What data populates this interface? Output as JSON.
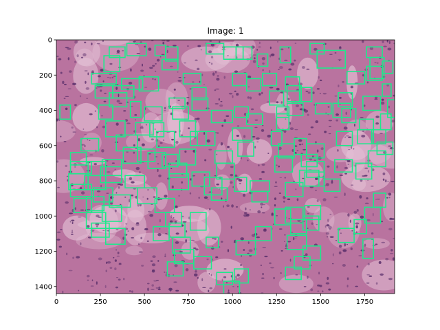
{
  "figure": {
    "title": "Image: 1"
  },
  "image": {
    "description_name": "histology-tissue-patch",
    "base_color": "#b9739f",
    "dark_color": "#5a2f6b",
    "light_color": "#e4c2d6",
    "box_color": "#1de98b"
  },
  "chart_data": {
    "type": "scatter",
    "xlim": [
      0,
      1920
    ],
    "ylim": [
      1440,
      0
    ],
    "x_ticks": [
      0,
      250,
      500,
      750,
      1000,
      1250,
      1500,
      1750
    ],
    "y_ticks": [
      0,
      200,
      400,
      600,
      800,
      1000,
      1200,
      1400
    ],
    "x_tick_labels": [
      "0",
      "250",
      "500",
      "750",
      "1000",
      "1250",
      "1500",
      "1750"
    ],
    "y_tick_labels": [
      "0",
      "200",
      "400",
      "600",
      "800",
      "1000",
      "1200",
      "1400"
    ],
    "grid": false,
    "boxes": [
      [
        300,
        40,
        90,
        60
      ],
      [
        400,
        20,
        110,
        70
      ],
      [
        560,
        30,
        60,
        60
      ],
      [
        620,
        40,
        70,
        80
      ],
      [
        850,
        20,
        100,
        60
      ],
      [
        950,
        40,
        110,
        70
      ],
      [
        1020,
        40,
        90,
        70
      ],
      [
        1140,
        80,
        60,
        70
      ],
      [
        1270,
        40,
        60,
        90
      ],
      [
        1440,
        20,
        80,
        60
      ],
      [
        1480,
        60,
        160,
        100
      ],
      [
        1760,
        40,
        90,
        60
      ],
      [
        1780,
        100,
        80,
        120
      ],
      [
        1850,
        120,
        60,
        70
      ],
      [
        270,
        90,
        90,
        90
      ],
      [
        200,
        190,
        140,
        60
      ],
      [
        220,
        260,
        100,
        70
      ],
      [
        320,
        260,
        120,
        70
      ],
      [
        370,
        220,
        120,
        60
      ],
      [
        470,
        210,
        110,
        80
      ],
      [
        600,
        110,
        90,
        60
      ],
      [
        720,
        190,
        100,
        60
      ],
      [
        770,
        270,
        80,
        70
      ],
      [
        1000,
        190,
        80,
        70
      ],
      [
        1080,
        220,
        80,
        70
      ],
      [
        1170,
        190,
        80,
        70
      ],
      [
        1300,
        210,
        80,
        80
      ],
      [
        1310,
        260,
        80,
        90
      ],
      [
        1380,
        270,
        70,
        80
      ],
      [
        1650,
        180,
        100,
        70
      ],
      [
        1760,
        150,
        90,
        80
      ],
      [
        1850,
        250,
        50,
        70
      ],
      [
        20,
        370,
        60,
        80
      ],
      [
        240,
        370,
        80,
        80
      ],
      [
        300,
        300,
        100,
        80
      ],
      [
        420,
        350,
        60,
        90
      ],
      [
        500,
        380,
        100,
        80
      ],
      [
        640,
        330,
        90,
        60
      ],
      [
        770,
        330,
        90,
        70
      ],
      [
        880,
        400,
        120,
        70
      ],
      [
        1010,
        380,
        80,
        60
      ],
      [
        1080,
        420,
        90,
        60
      ],
      [
        1210,
        290,
        80,
        80
      ],
      [
        1250,
        380,
        70,
        60
      ],
      [
        1310,
        360,
        90,
        70
      ],
      [
        1470,
        360,
        90,
        60
      ],
      [
        1570,
        360,
        100,
        80
      ],
      [
        1600,
        300,
        80,
        80
      ],
      [
        1620,
        390,
        80,
        80
      ],
      [
        1740,
        320,
        100,
        80
      ],
      [
        1720,
        450,
        80,
        60
      ],
      [
        1840,
        420,
        60,
        90
      ],
      [
        1880,
        340,
        60,
        100
      ],
      [
        280,
        460,
        110,
        90
      ],
      [
        340,
        540,
        120,
        90
      ],
      [
        450,
        470,
        100,
        70
      ],
      [
        530,
        470,
        80,
        80
      ],
      [
        570,
        520,
        100,
        90
      ],
      [
        660,
        380,
        90,
        70
      ],
      [
        700,
        460,
        90,
        90
      ],
      [
        760,
        520,
        90,
        80
      ],
      [
        800,
        520,
        100,
        80
      ],
      [
        1000,
        500,
        110,
        70
      ],
      [
        1220,
        520,
        60,
        80
      ],
      [
        1250,
        420,
        70,
        90
      ],
      [
        1350,
        560,
        70,
        90
      ],
      [
        1420,
        590,
        100,
        80
      ],
      [
        1590,
        520,
        90,
        80
      ],
      [
        1710,
        510,
        90,
        80
      ],
      [
        1790,
        510,
        80,
        80
      ],
      [
        1820,
        580,
        90,
        70
      ],
      [
        80,
        640,
        90,
        70
      ],
      [
        140,
        560,
        100,
        70
      ],
      [
        80,
        690,
        120,
        70
      ],
      [
        180,
        690,
        100,
        80
      ],
      [
        260,
        680,
        110,
        90
      ],
      [
        380,
        610,
        100,
        90
      ],
      [
        460,
        620,
        100,
        70
      ],
      [
        520,
        640,
        100,
        90
      ],
      [
        600,
        650,
        90,
        70
      ],
      [
        640,
        700,
        100,
        80
      ],
      [
        700,
        620,
        90,
        90
      ],
      [
        900,
        630,
        100,
        70
      ],
      [
        910,
        700,
        100,
        90
      ],
      [
        1030,
        580,
        90,
        80
      ],
      [
        1260,
        590,
        90,
        80
      ],
      [
        1240,
        660,
        100,
        90
      ],
      [
        1390,
        650,
        90,
        70
      ],
      [
        1420,
        690,
        100,
        90
      ],
      [
        1410,
        750,
        110,
        80
      ],
      [
        1580,
        680,
        100,
        70
      ],
      [
        1700,
        700,
        90,
        90
      ],
      [
        1770,
        630,
        100,
        90
      ],
      [
        70,
        760,
        110,
        90
      ],
      [
        80,
        820,
        120,
        70
      ],
      [
        160,
        770,
        120,
        80
      ],
      [
        210,
        840,
        110,
        80
      ],
      [
        250,
        720,
        120,
        90
      ],
      [
        300,
        880,
        120,
        70
      ],
      [
        390,
        770,
        110,
        70
      ],
      [
        460,
        840,
        110,
        90
      ],
      [
        560,
        900,
        110,
        80
      ],
      [
        640,
        760,
        110,
        90
      ],
      [
        770,
        750,
        100,
        80
      ],
      [
        840,
        780,
        100,
        100
      ],
      [
        880,
        840,
        90,
        70
      ],
      [
        1010,
        780,
        70,
        80
      ],
      [
        1100,
        800,
        110,
        60
      ],
      [
        1110,
        860,
        90,
        60
      ],
      [
        1300,
        810,
        100,
        80
      ],
      [
        1380,
        740,
        110,
        90
      ],
      [
        1520,
        790,
        90,
        70
      ],
      [
        1800,
        870,
        70,
        80
      ],
      [
        100,
        900,
        100,
        80
      ],
      [
        170,
        890,
        100,
        80
      ],
      [
        170,
        980,
        110,
        90
      ],
      [
        200,
        1040,
        100,
        80
      ],
      [
        260,
        940,
        110,
        90
      ],
      [
        280,
        1070,
        110,
        90
      ],
      [
        550,
        1060,
        90,
        80
      ],
      [
        620,
        980,
        90,
        80
      ],
      [
        640,
        1040,
        90,
        80
      ],
      [
        660,
        1120,
        100,
        90
      ],
      [
        760,
        980,
        90,
        100
      ],
      [
        850,
        1120,
        70,
        60
      ],
      [
        1020,
        1140,
        110,
        80
      ],
      [
        1130,
        1060,
        90,
        80
      ],
      [
        1240,
        960,
        90,
        90
      ],
      [
        1300,
        950,
        100,
        90
      ],
      [
        1330,
        1020,
        90,
        80
      ],
      [
        1410,
        940,
        90,
        80
      ],
      [
        1400,
        1000,
        90,
        80
      ],
      [
        1310,
        1110,
        110,
        80
      ],
      [
        1400,
        1170,
        100,
        80
      ],
      [
        1600,
        1070,
        90,
        80
      ],
      [
        1690,
        1020,
        70,
        80
      ],
      [
        1750,
        950,
        90,
        90
      ],
      [
        1740,
        1130,
        60,
        110
      ],
      [
        630,
        1260,
        90,
        80
      ],
      [
        670,
        1190,
        110,
        80
      ],
      [
        780,
        1230,
        100,
        70
      ],
      [
        910,
        1320,
        90,
        70
      ],
      [
        950,
        1370,
        90,
        80
      ],
      [
        1010,
        1300,
        80,
        80
      ],
      [
        1300,
        1290,
        90,
        70
      ],
      [
        1350,
        1230,
        90,
        70
      ]
    ]
  }
}
